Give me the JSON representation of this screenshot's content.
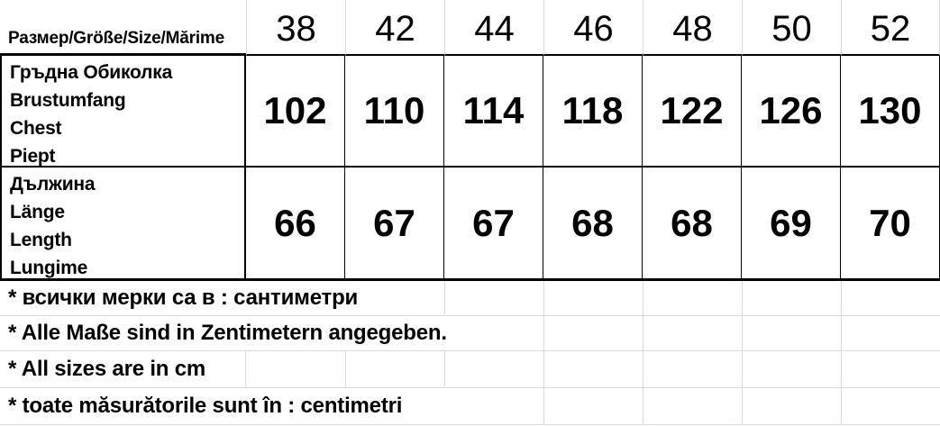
{
  "table": {
    "header": {
      "label": "Размер/Größe/Size/Mărime",
      "sizes": [
        "38",
        "42",
        "44",
        "46",
        "48",
        "50",
        "52"
      ]
    },
    "rows": [
      {
        "labels": [
          "Гръдна Обиколка",
          "Brustumfang",
          "Chest",
          "Piept"
        ],
        "values": [
          "102",
          "110",
          "114",
          "118",
          "122",
          "126",
          "130"
        ]
      },
      {
        "labels": [
          "Дължина",
          "Länge",
          "Length",
          "Lungime"
        ],
        "values": [
          "66",
          "67",
          "67",
          "68",
          "68",
          "69",
          "70"
        ]
      }
    ],
    "footnotes": [
      "* всички мерки са в : сантиметри",
      "* Alle Maße sind in Zentimetern angegeben.",
      "* All sizes are in cm",
      "* toate măsurătorile sunt în : centimetri"
    ]
  },
  "colors": {
    "text": "#000000",
    "border": "#000000",
    "gridline": "#d9d9d9",
    "background": "#ffffff"
  }
}
